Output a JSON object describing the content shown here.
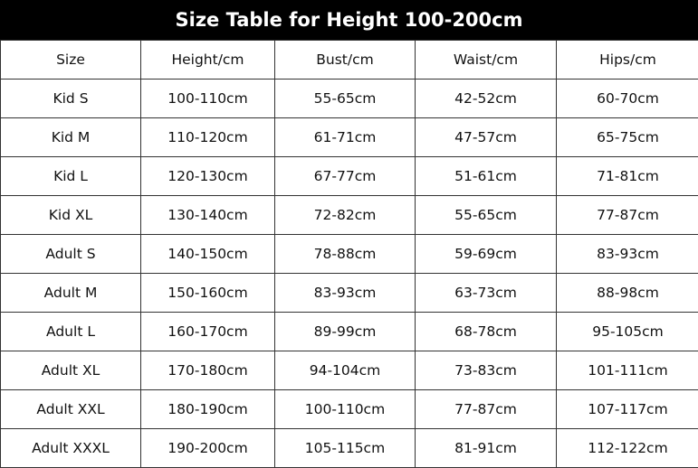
{
  "title": "Size Table for Height 100-200cm",
  "headers": [
    "Size",
    "Height/cm",
    "Bust/cm",
    "Waist/cm",
    "Hips/cm"
  ],
  "rows": [
    [
      "Kid S",
      "100-110cm",
      "55-65cm",
      "42-52cm",
      "60-70cm"
    ],
    [
      "Kid M",
      "110-120cm",
      "61-71cm",
      "47-57cm",
      "65-75cm"
    ],
    [
      "Kid L",
      "120-130cm",
      "67-77cm",
      "51-61cm",
      "71-81cm"
    ],
    [
      "Kid XL",
      "130-140cm",
      "72-82cm",
      "55-65cm",
      "77-87cm"
    ],
    [
      "Adult S",
      "140-150cm",
      "78-88cm",
      "59-69cm",
      "83-93cm"
    ],
    [
      "Adult M",
      "150-160cm",
      "83-93cm",
      "63-73cm",
      "88-98cm"
    ],
    [
      "Adult L",
      "160-170cm",
      "89-99cm",
      "68-78cm",
      "95-105cm"
    ],
    [
      "Adult XL",
      "170-180cm",
      "94-104cm",
      "73-83cm",
      "101-111cm"
    ],
    [
      "Adult XXL",
      "180-190cm",
      "100-110cm",
      "77-87cm",
      "107-117cm"
    ],
    [
      "Adult XXXL",
      "190-200cm",
      "105-115cm",
      "81-91cm",
      "112-122cm"
    ]
  ]
}
